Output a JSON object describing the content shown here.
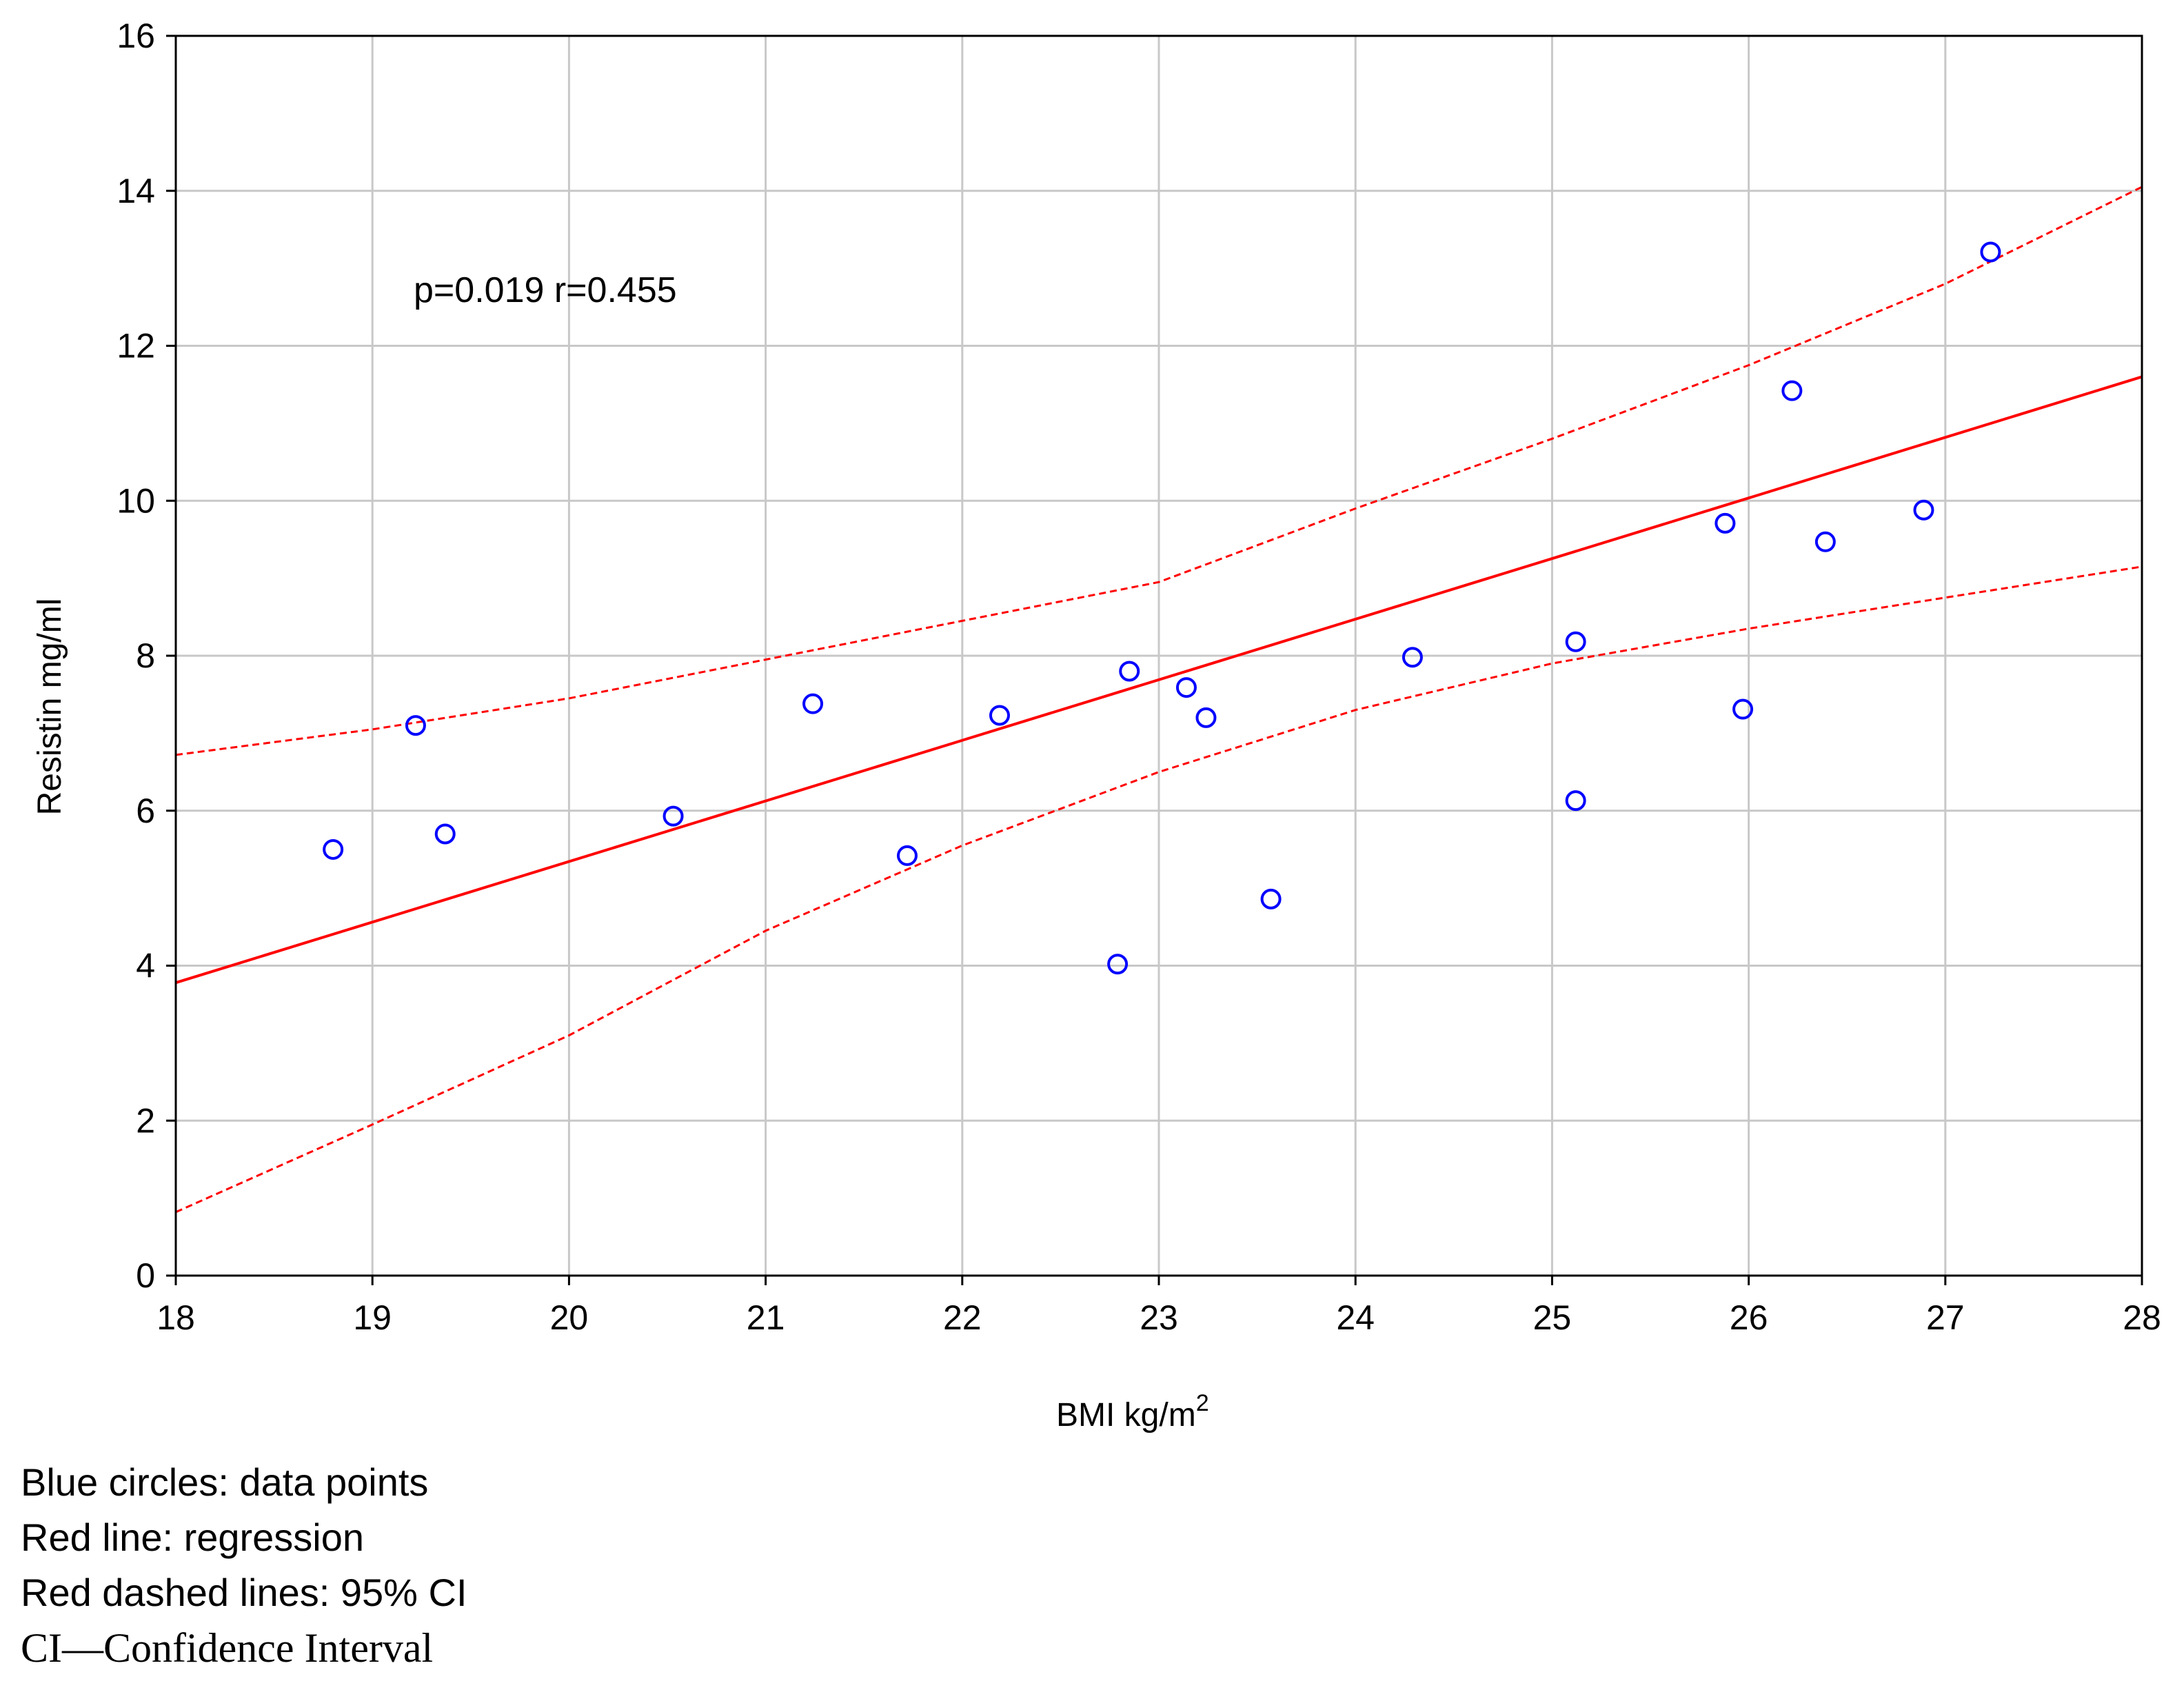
{
  "chart_data": {
    "type": "scatter",
    "title": "",
    "xlabel": "BMI kg/m",
    "xlabel_superscript": "2",
    "ylabel": "Resistin mg/ml",
    "xlim": [
      18,
      28
    ],
    "ylim": [
      0,
      16
    ],
    "xticks": [
      18,
      19,
      20,
      21,
      22,
      23,
      24,
      25,
      26,
      27,
      28
    ],
    "yticks": [
      0,
      2,
      4,
      6,
      8,
      10,
      12,
      14,
      16
    ],
    "grid": true,
    "annotation": "p=0.019 r=0.455",
    "points": [
      {
        "x": 18.8,
        "y": 5.5
      },
      {
        "x": 19.22,
        "y": 7.1
      },
      {
        "x": 19.37,
        "y": 5.7
      },
      {
        "x": 20.53,
        "y": 5.93
      },
      {
        "x": 21.24,
        "y": 7.38
      },
      {
        "x": 21.72,
        "y": 5.42
      },
      {
        "x": 22.19,
        "y": 7.23
      },
      {
        "x": 22.79,
        "y": 4.02
      },
      {
        "x": 22.85,
        "y": 7.8
      },
      {
        "x": 23.14,
        "y": 7.59
      },
      {
        "x": 23.24,
        "y": 7.2
      },
      {
        "x": 23.57,
        "y": 4.86
      },
      {
        "x": 24.29,
        "y": 7.98
      },
      {
        "x": 25.12,
        "y": 8.18
      },
      {
        "x": 25.12,
        "y": 6.13
      },
      {
        "x": 25.88,
        "y": 9.71
      },
      {
        "x": 25.97,
        "y": 7.31
      },
      {
        "x": 26.22,
        "y": 11.42
      },
      {
        "x": 26.39,
        "y": 9.47
      },
      {
        "x": 26.89,
        "y": 9.88
      },
      {
        "x": 27.23,
        "y": 13.21
      }
    ],
    "regression": [
      [
        18,
        3.78
      ],
      [
        28,
        11.6
      ]
    ],
    "ci_upper": [
      [
        18,
        6.72
      ],
      [
        19,
        7.05
      ],
      [
        20,
        7.45
      ],
      [
        21,
        7.95
      ],
      [
        22,
        8.45
      ],
      [
        23,
        8.95
      ],
      [
        24,
        9.9
      ],
      [
        25,
        10.8
      ],
      [
        26,
        11.75
      ],
      [
        27,
        12.8
      ],
      [
        28,
        14.05
      ]
    ],
    "ci_lower": [
      [
        18,
        0.82
      ],
      [
        19,
        1.95
      ],
      [
        20,
        3.1
      ],
      [
        21,
        4.45
      ],
      [
        22,
        5.55
      ],
      [
        23,
        6.5
      ],
      [
        24,
        7.3
      ],
      [
        25,
        7.9
      ],
      [
        26,
        8.35
      ],
      [
        27,
        8.75
      ],
      [
        28,
        9.15
      ]
    ],
    "colors": {
      "points": "#0000ff",
      "regression": "#ff0000",
      "ci": "#ff0000",
      "grid": "#c8c8c8"
    }
  },
  "legend_lines": [
    "Blue circles: data points",
    "Red line: regression",
    "Red dashed lines: 95% CI",
    "CI—Confidence Interval"
  ]
}
